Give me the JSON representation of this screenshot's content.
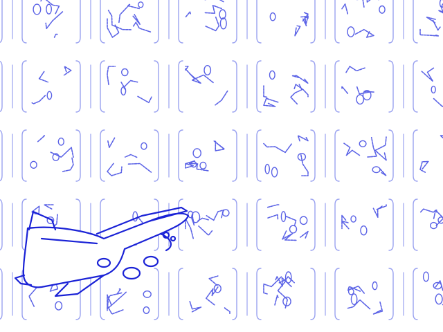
{
  "scene": {
    "background_color": "#ffffff",
    "tile_stroke_color": "#5a62e6",
    "tile_stroke_light": "#9aa2f0",
    "airplane_stroke_color": "#1a22d6",
    "airplane_fill_color": "#ffffff"
  },
  "grid": {
    "rows": 5,
    "cols": 6,
    "tile_icons": [
      [
        "maze-glyph-icon",
        "maze-glyph-icon",
        "maze-glyph-icon",
        "maze-glyph-icon",
        "maze-glyph-icon",
        "maze-glyph-icon"
      ],
      [
        "maze-glyph-icon",
        "maze-glyph-icon",
        "maze-glyph-icon",
        "maze-glyph-icon",
        "maze-glyph-icon",
        "maze-glyph-icon"
      ],
      [
        "maze-glyph-icon",
        "maze-glyph-icon",
        "maze-glyph-icon",
        "maze-glyph-icon",
        "maze-glyph-icon",
        "maze-glyph-icon"
      ],
      [
        "maze-glyph-icon",
        "maze-glyph-icon",
        "maze-glyph-icon",
        "maze-glyph-icon",
        "maze-glyph-icon",
        "maze-glyph-icon"
      ],
      [
        "maze-glyph-icon",
        "maze-glyph-icon",
        "maze-glyph-icon",
        "maze-glyph-icon",
        "maze-glyph-icon",
        "maze-glyph-icon"
      ]
    ]
  },
  "overlay": {
    "icon": "airplane-icon"
  }
}
